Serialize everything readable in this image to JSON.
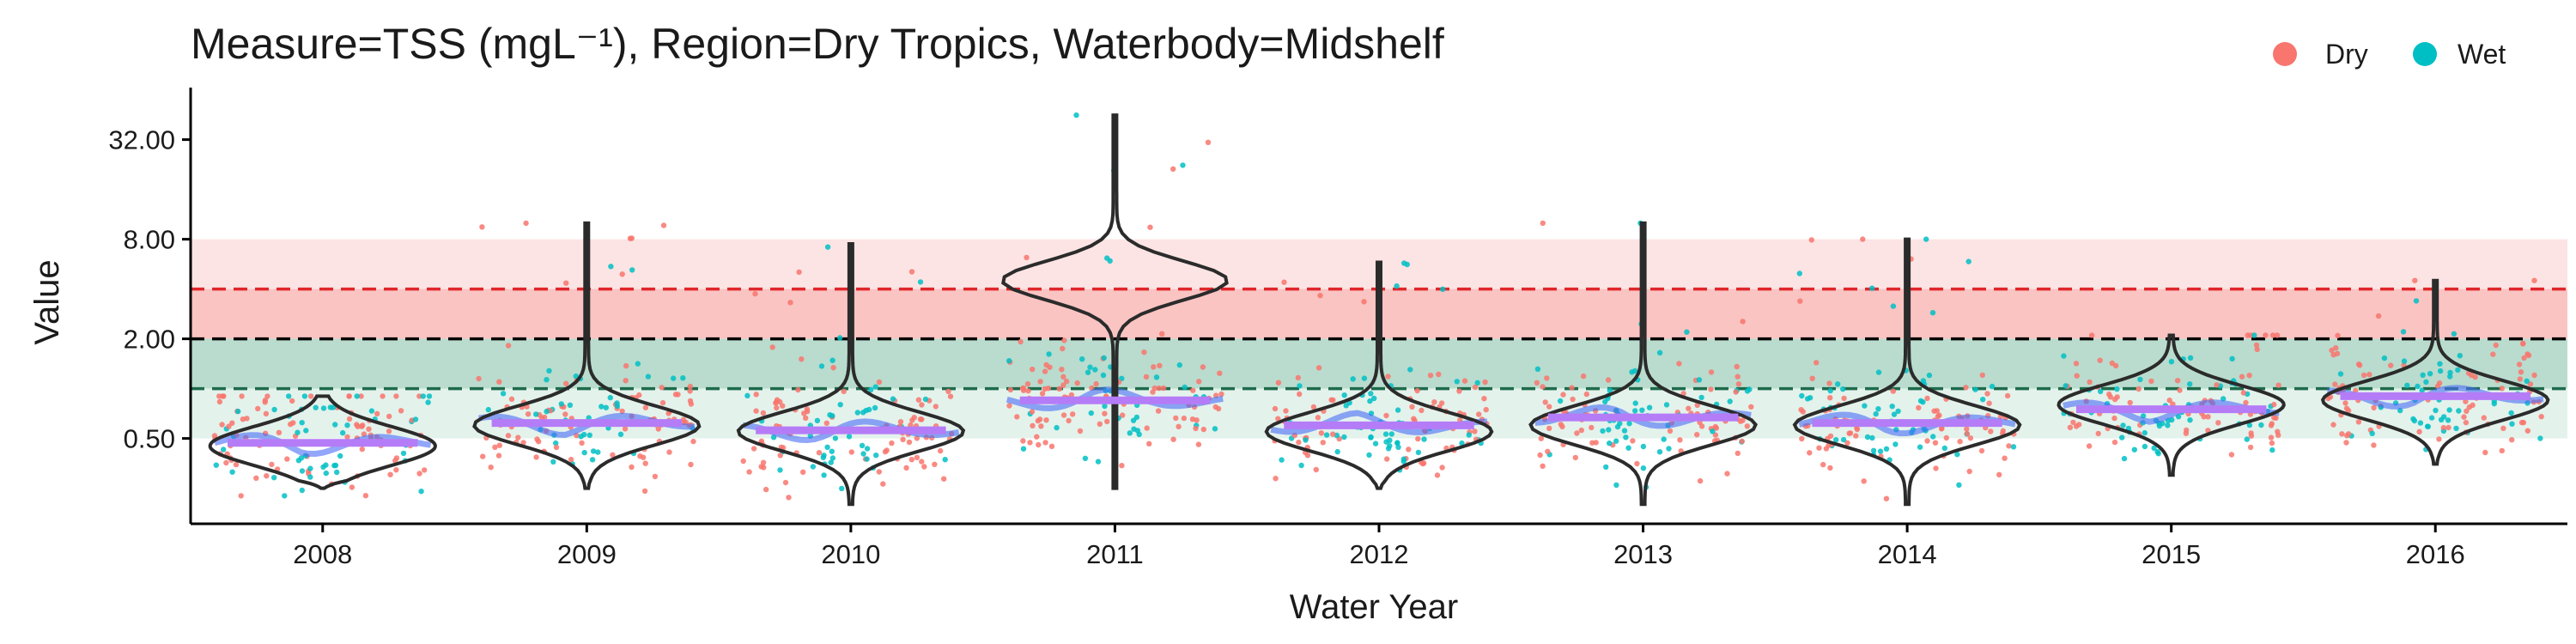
{
  "chart_data": {
    "type": "violin",
    "title": "Measure=TSS (mgL⁻¹), Region=Dry Tropics, Waterbody=Midshelf",
    "xlabel": "Water Year",
    "ylabel": "Value",
    "y_scale": "log2",
    "ylim": [
      0.1,
      60
    ],
    "y_ticks": [
      0.5,
      2,
      8,
      32
    ],
    "y_tick_labels": [
      "0.50",
      "2.00",
      "8.00",
      "32.00"
    ],
    "categories": [
      "2008",
      "2009",
      "2010",
      "2011",
      "2012",
      "2013",
      "2014",
      "2015",
      "2016"
    ],
    "legend": {
      "placement": "top-right",
      "items": [
        {
          "label": "Dry",
          "color": "#F8766D"
        },
        {
          "label": "Wet",
          "color": "#00BFC4"
        }
      ]
    },
    "guideline_bands": [
      {
        "from": 2.0,
        "to": 8.0,
        "color": "#FCE4E4"
      },
      {
        "from": 2.0,
        "to": 4.0,
        "color": "#F9C4C2"
      },
      {
        "from": 1.0,
        "to": 2.0,
        "color": "#B9DCCE"
      },
      {
        "from": 0.5,
        "to": 1.0,
        "color": "#E4F2EC"
      }
    ],
    "reference_lines": [
      {
        "value": 4.0,
        "color": "#E0262B",
        "style": "dashed"
      },
      {
        "value": 2.0,
        "color": "#000000",
        "style": "dashed"
      },
      {
        "value": 1.0,
        "color": "#1E6B4B",
        "style": "dashed"
      }
    ],
    "violins": [
      {
        "year": "2008",
        "min": 0.25,
        "max": 0.9,
        "peak": 0.45
      },
      {
        "year": "2009",
        "min": 0.25,
        "max": 10,
        "peak": 0.6
      },
      {
        "year": "2010",
        "min": 0.2,
        "max": 7.5,
        "peak": 0.55
      },
      {
        "year": "2011",
        "min": 0.25,
        "max": 45,
        "peak": 4.5
      },
      {
        "year": "2012",
        "min": 0.25,
        "max": 5.8,
        "peak": 0.55
      },
      {
        "year": "2013",
        "min": 0.2,
        "max": 10,
        "peak": 0.6
      },
      {
        "year": "2014",
        "min": 0.2,
        "max": 8,
        "peak": 0.6
      },
      {
        "year": "2015",
        "min": 0.3,
        "max": 2.1,
        "peak": 0.8
      },
      {
        "year": "2016",
        "min": 0.35,
        "max": 4.5,
        "peak": 0.85
      }
    ],
    "year_medians": [
      {
        "year": "2008",
        "value": 0.47
      },
      {
        "year": "2009",
        "value": 0.62
      },
      {
        "year": "2010",
        "value": 0.56
      },
      {
        "year": "2011",
        "value": 0.85
      },
      {
        "year": "2012",
        "value": 0.6
      },
      {
        "year": "2013",
        "value": 0.67
      },
      {
        "year": "2014",
        "value": 0.62
      },
      {
        "year": "2015",
        "value": 0.75
      },
      {
        "year": "2016",
        "value": 0.9
      }
    ]
  }
}
